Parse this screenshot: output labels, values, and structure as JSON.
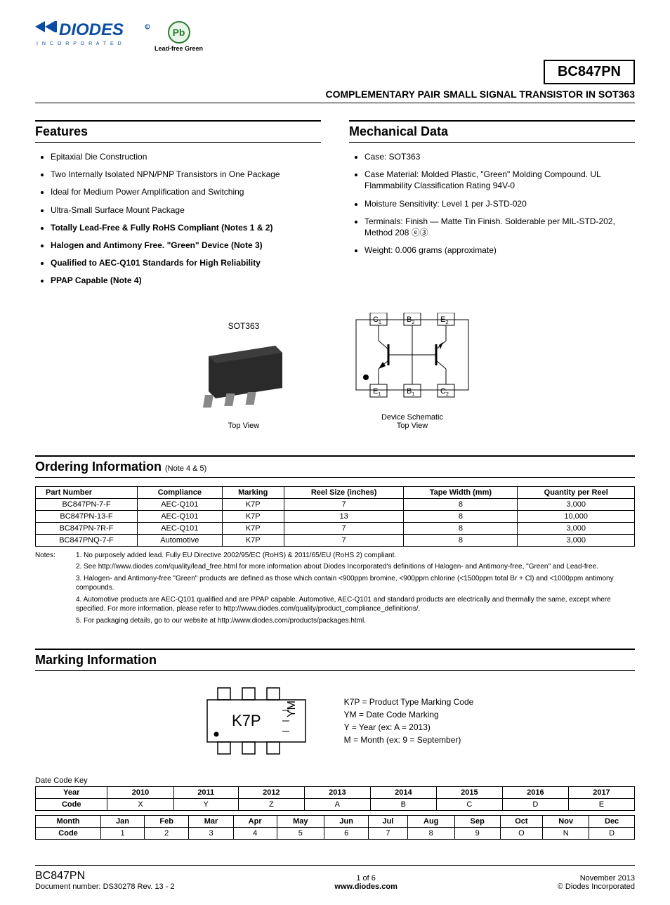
{
  "header": {
    "logo_top": "DIODES",
    "logo_sub": "I N C O R P O R A T E D",
    "pb_symbol": "Pb",
    "pb_label": "Lead-free Green",
    "part_number": "BC847PN"
  },
  "subtitle": "COMPLEMENTARY PAIR SMALL SIGNAL TRANSISTOR IN SOT363",
  "features": {
    "title": "Features",
    "items": [
      {
        "text": "Epitaxial Die Construction",
        "bold": false
      },
      {
        "text": "Two Internally Isolated NPN/PNP Transistors in One Package",
        "bold": false
      },
      {
        "text": "Ideal for Medium Power Amplification and Switching",
        "bold": false
      },
      {
        "text": "Ultra-Small Surface Mount Package",
        "bold": false
      },
      {
        "text": "Totally Lead-Free & Fully RoHS Compliant (Notes 1 & 2)",
        "bold": true
      },
      {
        "text": "Halogen and Antimony Free. \"Green\" Device (Note 3)",
        "bold": true
      },
      {
        "text": "Qualified to AEC-Q101 Standards for High Reliability",
        "bold": true
      },
      {
        "text": "PPAP Capable (Note 4)",
        "bold": true
      }
    ]
  },
  "mechanical": {
    "title": "Mechanical Data",
    "items": [
      "Case: SOT363",
      "Case Material: Molded Plastic, \"Green\" Molding Compound. UL Flammability Classification Rating 94V-0",
      "Moisture Sensitivity:  Level 1 per J-STD-020",
      "Terminals: Finish — Matte Tin Finish. Solderable per MIL-STD-202, Method 208 ⓔ③",
      "Weight: 0.006 grams (approximate)"
    ]
  },
  "figures": {
    "pkg_label": "SOT363",
    "top_view": "Top View",
    "schematic_line1": "Device Schematic",
    "schematic_line2": "Top View",
    "pins": {
      "c1": "C",
      "b2": "B",
      "e2": "E",
      "e1": "E",
      "b1": "B",
      "c2": "C"
    }
  },
  "ordering": {
    "title": "Ordering Information",
    "note_ref": "(Note 4 & 5)",
    "columns": [
      "Part Number",
      "Compliance",
      "Marking",
      "Reel Size (inches)",
      "Tape Width (mm)",
      "Quantity per Reel"
    ],
    "rows": [
      [
        "BC847PN-7-F",
        "AEC-Q101",
        "K7P",
        "7",
        "8",
        "3,000"
      ],
      [
        "BC847PN-13-F",
        "AEC-Q101",
        "K7P",
        "13",
        "8",
        "10,000"
      ],
      [
        "BC847PN-7R-F",
        "AEC-Q101",
        "K7P",
        "7",
        "8",
        "3,000"
      ],
      [
        "BC847PNQ-7-F",
        "Automotive",
        "K7P",
        "7",
        "8",
        "3,000"
      ]
    ]
  },
  "notes": {
    "label": "Notes:",
    "items": [
      "1. No purposely added lead. Fully EU Directive 2002/95/EC (RoHS) & 2011/65/EU (RoHS 2) compliant.",
      "2. See http://www.diodes.com/quality/lead_free.html for more information about Diodes Incorporated's definitions of Halogen- and Antimony-free, \"Green\" and Lead-free.",
      "3. Halogen- and Antimony-free \"Green\" products are defined as those which contain <900ppm bromine, <900ppm chlorine (<1500ppm total Br + Cl) and <1000ppm antimony compounds.",
      "4. Automotive products are AEC-Q101 qualified and are PPAP capable.  Automotive, AEC-Q101 and standard products are electrically and thermally the same, except where specified. For more information, please refer to http://www.diodes.com/quality/product_compliance_definitions/.",
      "5. For packaging details, go to our website at http://www.diodes.com/products/packages.html."
    ]
  },
  "marking": {
    "title": "Marking Information",
    "code_main": "K7P",
    "code_side": "YM",
    "legend": [
      "K7P = Product Type Marking Code",
      "YM = Date Code Marking",
      "Y = Year (ex: A = 2013)",
      "M = Month (ex: 9 = September)"
    ],
    "date_key_label": "Date Code Key",
    "year_table": {
      "header_label": "Year",
      "code_label": "Code",
      "years": [
        "2010",
        "2011",
        "2012",
        "2013",
        "2014",
        "2015",
        "2016",
        "2017"
      ],
      "codes": [
        "X",
        "Y",
        "Z",
        "A",
        "B",
        "C",
        "D",
        "E"
      ]
    },
    "month_table": {
      "header_label": "Month",
      "code_label": "Code",
      "months": [
        "Jan",
        "Feb",
        "Mar",
        "Apr",
        "May",
        "Jun",
        "Jul",
        "Aug",
        "Sep",
        "Oct",
        "Nov",
        "Dec"
      ],
      "codes": [
        "1",
        "2",
        "3",
        "4",
        "5",
        "6",
        "7",
        "8",
        "9",
        "O",
        "N",
        "D"
      ]
    }
  },
  "footer": {
    "part": "BC847PN",
    "doc_num": "Document number: DS30278 Rev. 13 - 2",
    "page": "1 of 6",
    "url": "www.diodes.com",
    "date": "November 2013",
    "copyright": "© Diodes Incorporated"
  },
  "colors": {
    "brand_blue": "#0b4da2",
    "green": "#2e7d32"
  }
}
